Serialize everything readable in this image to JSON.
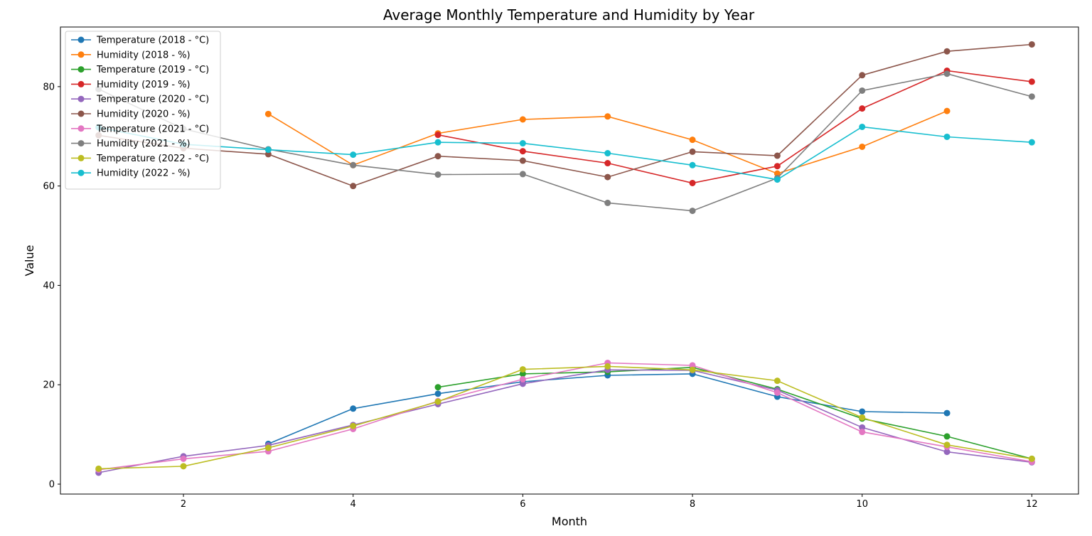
{
  "chart_data": {
    "type": "line",
    "title": "Average Monthly Temperature and Humidity by Year",
    "xlabel": "Month",
    "ylabel": "Value",
    "xlim": [
      0.55,
      12.55
    ],
    "ylim": [
      -2,
      92
    ],
    "xticks": [
      2,
      4,
      6,
      8,
      10,
      12
    ],
    "yticks": [
      0,
      20,
      40,
      60,
      80
    ],
    "grid": false,
    "legend_position": "top-left",
    "series": [
      {
        "name": "Temperature (2018 - °C)",
        "color": "#1f77b4",
        "x": [
          3,
          4,
          5,
          6,
          7,
          8,
          9,
          10,
          11
        ],
        "y": [
          8.1,
          15.2,
          18.2,
          20.6,
          21.9,
          22.2,
          17.6,
          14.6,
          14.3
        ]
      },
      {
        "name": "Humidity (2018 - %)",
        "color": "#ff7f0e",
        "x": [
          3,
          4,
          5,
          6,
          7,
          8,
          9,
          10,
          11
        ],
        "y": [
          74.5,
          64.2,
          70.6,
          73.4,
          74.0,
          69.3,
          62.5,
          67.9,
          75.1
        ]
      },
      {
        "name": "Temperature (2019 - °C)",
        "color": "#2ca02c",
        "x": [
          5,
          6,
          7,
          8,
          9,
          10,
          11,
          12
        ],
        "y": [
          19.5,
          22.2,
          22.6,
          23.5,
          19.1,
          13.2,
          9.6,
          5.1
        ]
      },
      {
        "name": "Humidity (2019 - %)",
        "color": "#d62728",
        "x": [
          5,
          6,
          7,
          8,
          9,
          10,
          11,
          12
        ],
        "y": [
          70.3,
          67.0,
          64.6,
          60.6,
          64.0,
          75.6,
          83.2,
          81.0
        ]
      },
      {
        "name": "Temperature (2020 - °C)",
        "color": "#9467bd",
        "x": [
          1,
          2,
          3,
          4,
          5,
          6,
          7,
          8,
          9,
          10,
          11,
          12
        ],
        "y": [
          2.3,
          5.6,
          7.8,
          11.9,
          16.1,
          20.2,
          23.0,
          22.9,
          18.9,
          11.4,
          6.5,
          4.4
        ]
      },
      {
        "name": "Humidity (2020 - %)",
        "color": "#8c564b",
        "x": [
          1,
          2,
          3,
          4,
          5,
          6,
          7,
          8,
          9,
          10,
          11,
          12
        ],
        "y": [
          70.2,
          67.6,
          66.4,
          60.0,
          66.0,
          65.1,
          61.8,
          66.9,
          66.1,
          82.3,
          87.1,
          88.5
        ]
      },
      {
        "name": "Temperature (2021 - °C)",
        "color": "#e377c2",
        "x": [
          1,
          2,
          3,
          4,
          5,
          6,
          7,
          8,
          9,
          10,
          11,
          12
        ],
        "y": [
          2.9,
          5.1,
          6.6,
          11.1,
          16.7,
          21.1,
          24.4,
          23.9,
          18.4,
          10.5,
          7.5,
          4.5
        ]
      },
      {
        "name": "Humidity (2021 - %)",
        "color": "#7f7f7f",
        "x": [
          1,
          2,
          3,
          4,
          5,
          6,
          7,
          8,
          9,
          10,
          11,
          12
        ],
        "y": [
          79.5,
          71.5,
          67.4,
          64.2,
          62.3,
          62.4,
          56.6,
          55.0,
          61.6,
          79.2,
          82.6,
          78.0
        ]
      },
      {
        "name": "Temperature (2022 - °C)",
        "color": "#bcbd22",
        "x": [
          1,
          2,
          3,
          4,
          5,
          6,
          7,
          8,
          9,
          10,
          11,
          12
        ],
        "y": [
          3.1,
          3.6,
          7.3,
          11.7,
          16.6,
          23.1,
          23.7,
          23.0,
          20.8,
          13.4,
          7.9,
          5.1
        ]
      },
      {
        "name": "Humidity (2022 - %)",
        "color": "#17becf",
        "x": [
          1,
          2,
          3,
          4,
          5,
          6,
          7,
          8,
          9,
          10,
          11,
          12
        ],
        "y": [
          71.8,
          68.4,
          67.3,
          66.3,
          68.8,
          68.6,
          66.6,
          64.2,
          61.3,
          71.9,
          69.9,
          68.8
        ]
      }
    ]
  }
}
